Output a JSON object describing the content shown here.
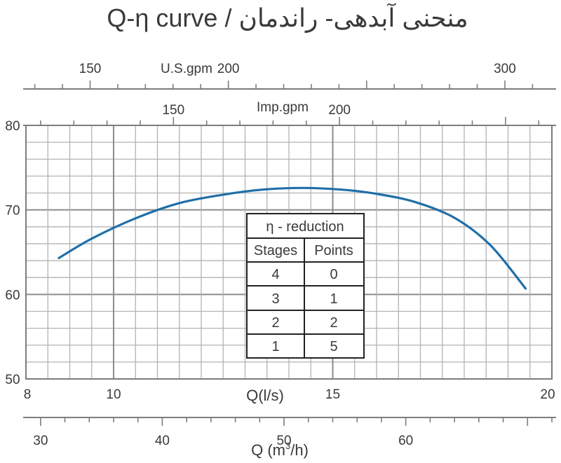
{
  "title": "Q-η curve / منحنی آبدهی- راندمان",
  "chart_data": {
    "type": "line",
    "series": [
      {
        "x": [
          8.75,
          9.5,
          10.5,
          11.5,
          12.5,
          13.4,
          14.3,
          15.2,
          16.0,
          16.9,
          17.8,
          18.6,
          19.4
        ],
        "y": [
          64.3,
          66.6,
          69.0,
          70.8,
          71.8,
          72.4,
          72.6,
          72.4,
          71.9,
          70.9,
          69.0,
          65.8,
          60.7
        ]
      }
    ],
    "xlim": [
      8,
      20
    ],
    "ylim": [
      50,
      80
    ],
    "grid": true,
    "axes": {
      "y": {
        "ticks": [
          50,
          60,
          70,
          80
        ]
      },
      "x_ls": {
        "label": "Q(l/s)",
        "ticks": [
          8,
          10,
          15,
          20
        ]
      },
      "x_m3h": {
        "label_main": "Q (m",
        "label_sup": "3",
        "label_tail": "/h)",
        "ticks": [
          30,
          40,
          50,
          60
        ]
      },
      "x_imp": {
        "label": "Imp.gpm",
        "ticks": [
          150,
          200
        ]
      },
      "x_usgpm": {
        "label": "U.S.gpm",
        "ticks": [
          150,
          200,
          300
        ]
      }
    },
    "table": {
      "title": "η - reduction",
      "headers": [
        "Stages",
        "Points"
      ],
      "rows": [
        [
          "4",
          "0"
        ],
        [
          "3",
          "1"
        ],
        [
          "2",
          "2"
        ],
        [
          "1",
          "5"
        ]
      ]
    }
  }
}
